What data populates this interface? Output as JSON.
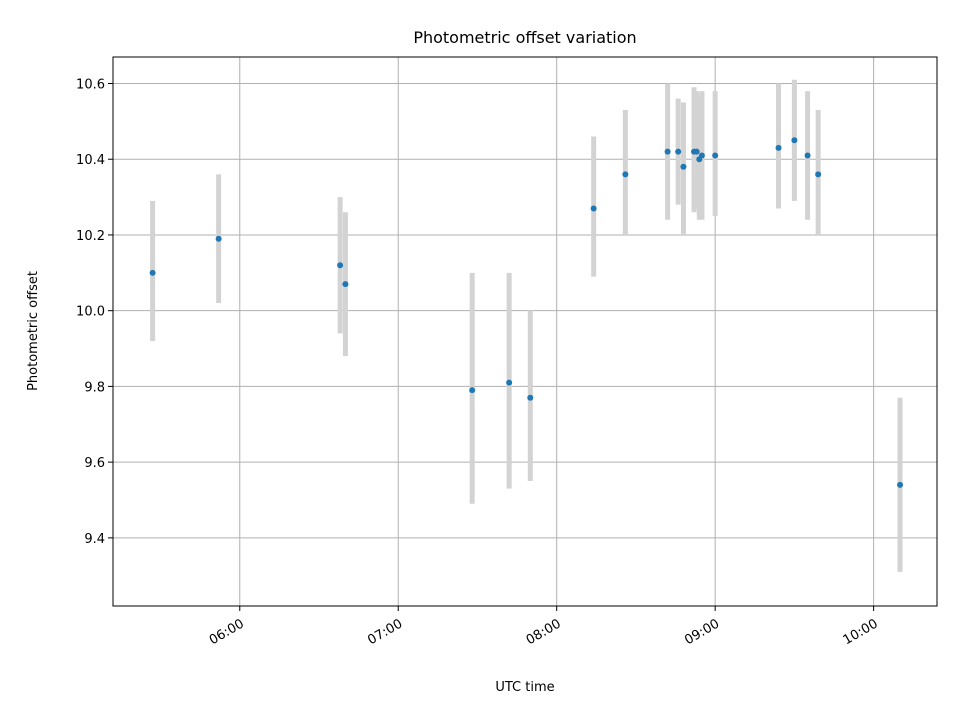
{
  "chart_data": {
    "type": "scatter",
    "title": "Photometric offset variation",
    "xlabel": "UTC time",
    "ylabel": "Photometric offset",
    "x_tick_labels": [
      "06:00",
      "07:00",
      "08:00",
      "09:00",
      "10:00"
    ],
    "y_tick_labels": [
      "9.4",
      "9.6",
      "9.8",
      "10.0",
      "10.2",
      "10.4",
      "10.6"
    ],
    "y_ticks": [
      9.4,
      9.6,
      9.8,
      10.0,
      10.2,
      10.4,
      10.6
    ],
    "xlim": [
      "05:12",
      "10:24"
    ],
    "ylim": [
      9.22,
      10.67
    ],
    "grid": true,
    "point_color": "#1f77b4",
    "error_bar_color": "#d3d3d3",
    "series": [
      {
        "points": [
          {
            "x": "05:27",
            "y": 10.1,
            "ylow": 9.92,
            "yhigh": 10.29
          },
          {
            "x": "05:52",
            "y": 10.19,
            "ylow": 10.02,
            "yhigh": 10.36
          },
          {
            "x": "06:38",
            "y": 10.12,
            "ylow": 9.94,
            "yhigh": 10.3
          },
          {
            "x": "06:40",
            "y": 10.07,
            "ylow": 9.88,
            "yhigh": 10.26
          },
          {
            "x": "07:28",
            "y": 9.79,
            "ylow": 9.49,
            "yhigh": 10.1
          },
          {
            "x": "07:42",
            "y": 9.81,
            "ylow": 9.53,
            "yhigh": 10.1
          },
          {
            "x": "07:50",
            "y": 9.77,
            "ylow": 9.55,
            "yhigh": 10.0
          },
          {
            "x": "08:14",
            "y": 10.27,
            "ylow": 10.09,
            "yhigh": 10.46
          },
          {
            "x": "08:26",
            "y": 10.36,
            "ylow": 10.2,
            "yhigh": 10.53
          },
          {
            "x": "08:42",
            "y": 10.42,
            "ylow": 10.24,
            "yhigh": 10.6
          },
          {
            "x": "08:46",
            "y": 10.42,
            "ylow": 10.28,
            "yhigh": 10.56
          },
          {
            "x": "08:48",
            "y": 10.38,
            "ylow": 10.2,
            "yhigh": 10.55
          },
          {
            "x": "08:52",
            "y": 10.42,
            "ylow": 10.26,
            "yhigh": 10.59
          },
          {
            "x": "08:53",
            "y": 10.42,
            "ylow": 10.27,
            "yhigh": 10.58
          },
          {
            "x": "08:54",
            "y": 10.4,
            "ylow": 10.24,
            "yhigh": 10.57
          },
          {
            "x": "08:55",
            "y": 10.41,
            "ylow": 10.24,
            "yhigh": 10.58
          },
          {
            "x": "09:00",
            "y": 10.41,
            "ylow": 10.25,
            "yhigh": 10.58
          },
          {
            "x": "09:24",
            "y": 10.43,
            "ylow": 10.27,
            "yhigh": 10.6
          },
          {
            "x": "09:30",
            "y": 10.45,
            "ylow": 10.29,
            "yhigh": 10.61
          },
          {
            "x": "09:35",
            "y": 10.41,
            "ylow": 10.24,
            "yhigh": 10.58
          },
          {
            "x": "09:39",
            "y": 10.36,
            "ylow": 10.2,
            "yhigh": 10.53
          },
          {
            "x": "10:10",
            "y": 9.54,
            "ylow": 9.31,
            "yhigh": 9.77
          }
        ]
      }
    ]
  }
}
